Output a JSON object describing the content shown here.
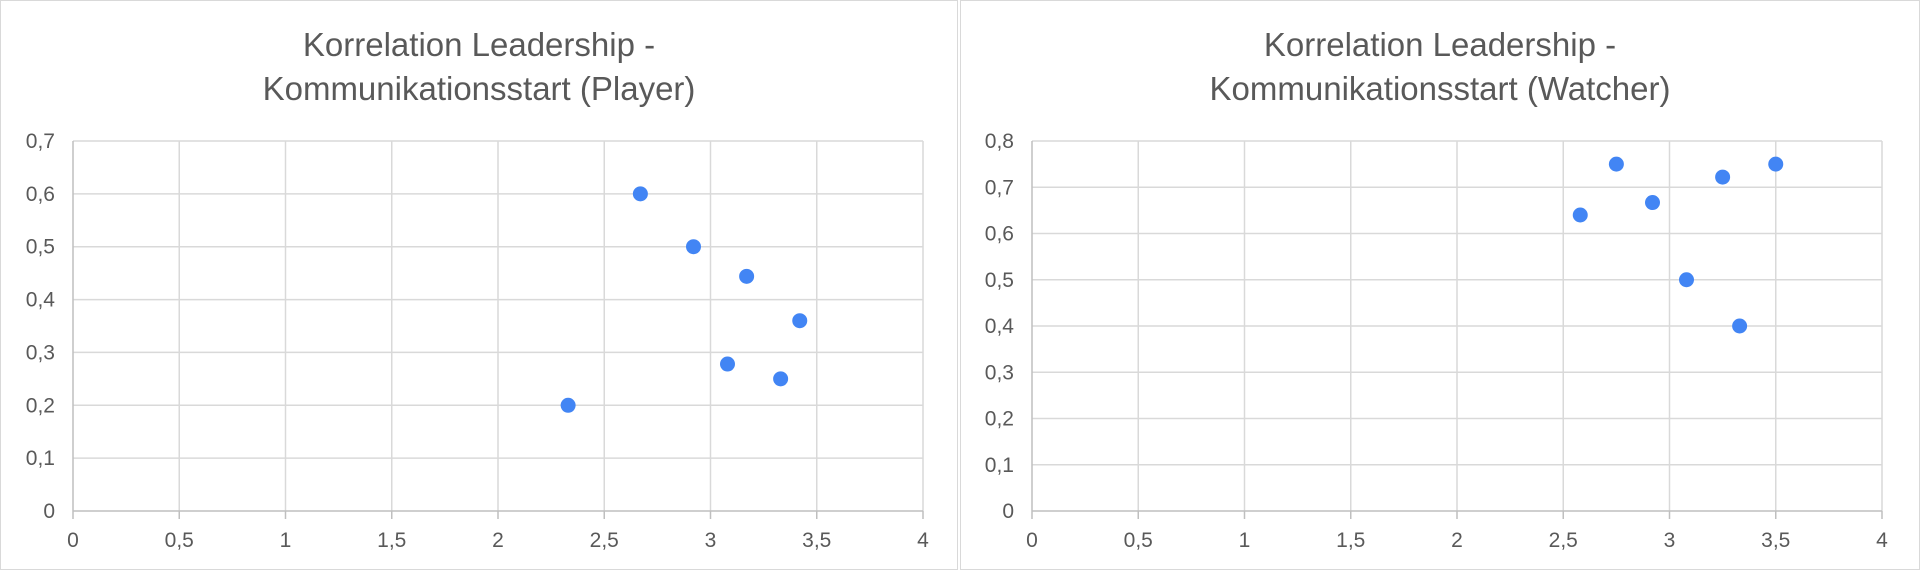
{
  "colors": {
    "point": "#4285f4",
    "grid": "#d9d9d9",
    "text": "#595959"
  },
  "chart_data": [
    {
      "type": "scatter",
      "title_lines": [
        "Korrelation Leadership -",
        "Kommunikationsstart (Player)"
      ],
      "xlim": [
        0,
        4
      ],
      "ylim": [
        0,
        0.7
      ],
      "x_ticks": [
        "0",
        "0,5",
        "1",
        "1,5",
        "2",
        "2,5",
        "3",
        "3,5",
        "4"
      ],
      "y_ticks": [
        "0",
        "0,1",
        "0,2",
        "0,3",
        "0,4",
        "0,5",
        "0,6",
        "0,7"
      ],
      "grid": true,
      "legend": "none",
      "points": [
        {
          "x": 2.33,
          "y": 0.2
        },
        {
          "x": 2.67,
          "y": 0.6
        },
        {
          "x": 2.92,
          "y": 0.5
        },
        {
          "x": 3.08,
          "y": 0.278
        },
        {
          "x": 3.17,
          "y": 0.444
        },
        {
          "x": 3.33,
          "y": 0.25
        },
        {
          "x": 3.42,
          "y": 0.36
        }
      ]
    },
    {
      "type": "scatter",
      "title_lines": [
        "Korrelation Leadership -",
        "Kommunikationsstart (Watcher)"
      ],
      "xlim": [
        0,
        4
      ],
      "ylim": [
        0,
        0.8
      ],
      "x_ticks": [
        "0",
        "0,5",
        "1",
        "1,5",
        "2",
        "2,5",
        "3",
        "3,5",
        "4"
      ],
      "y_ticks": [
        "0",
        "0,1",
        "0,2",
        "0,3",
        "0,4",
        "0,5",
        "0,6",
        "0,7",
        "0,8"
      ],
      "grid": true,
      "legend": "none",
      "points": [
        {
          "x": 2.58,
          "y": 0.64
        },
        {
          "x": 2.75,
          "y": 0.75
        },
        {
          "x": 2.92,
          "y": 0.667
        },
        {
          "x": 3.08,
          "y": 0.5
        },
        {
          "x": 3.25,
          "y": 0.722
        },
        {
          "x": 3.33,
          "y": 0.4
        },
        {
          "x": 3.5,
          "y": 0.75
        }
      ]
    }
  ]
}
